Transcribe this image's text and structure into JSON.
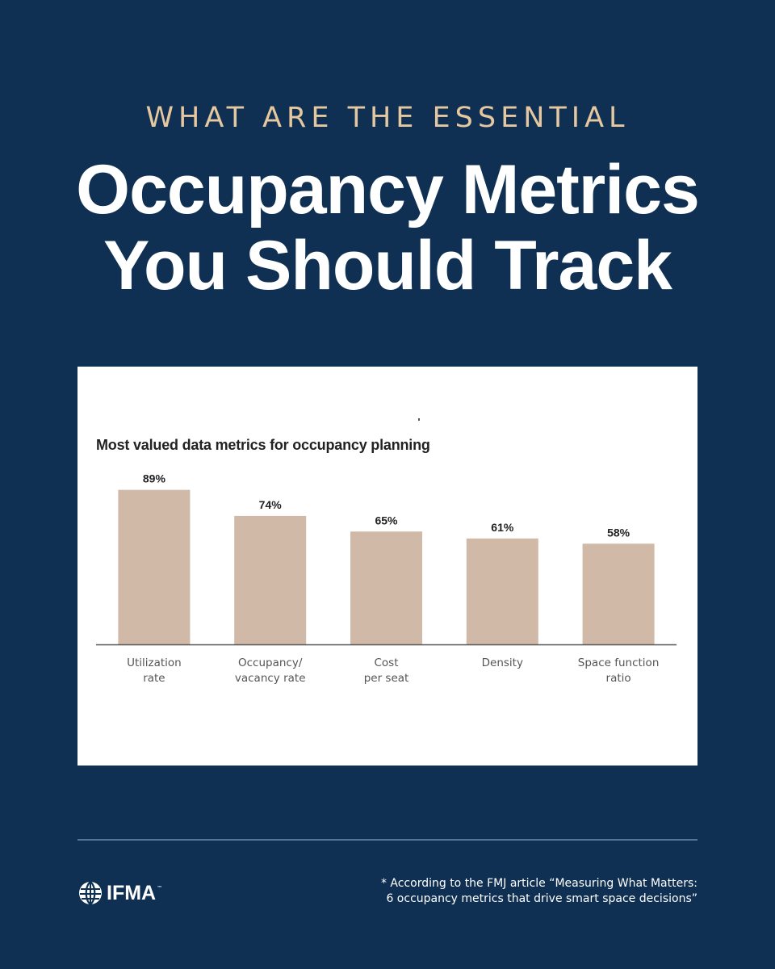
{
  "header": {
    "kicker": "WHAT ARE THE ESSENTIAL",
    "headline_line1": "Occupancy Metrics",
    "headline_line2": "You Should Track"
  },
  "chart_data": {
    "type": "bar",
    "title": "Most valued data metrics for occupancy planning",
    "categories": [
      [
        "Utilization",
        "rate"
      ],
      [
        "Occupancy/",
        "vacancy rate"
      ],
      [
        "Cost",
        "per seat"
      ],
      [
        "Density"
      ],
      [
        "Space function",
        "ratio"
      ]
    ],
    "values": [
      89,
      74,
      65,
      61,
      58
    ],
    "value_labels": [
      "89%",
      "74%",
      "65%",
      "61%",
      "58%"
    ],
    "ylim": [
      0,
      100
    ],
    "xlabel": "",
    "ylabel": "",
    "bar_color": "#d1b9a7",
    "grid": false
  },
  "footer": {
    "logo_text": "IFMA",
    "logo_tm": "™",
    "footnote_line1": "* According to the FMJ article “Measuring What Matters:",
    "footnote_line2": "6 occupancy metrics that drive smart space decisions”"
  },
  "colors": {
    "background": "#0f3052",
    "kicker": "#e5c89f",
    "headline": "#ffffff",
    "bar": "#d1b9a7"
  }
}
